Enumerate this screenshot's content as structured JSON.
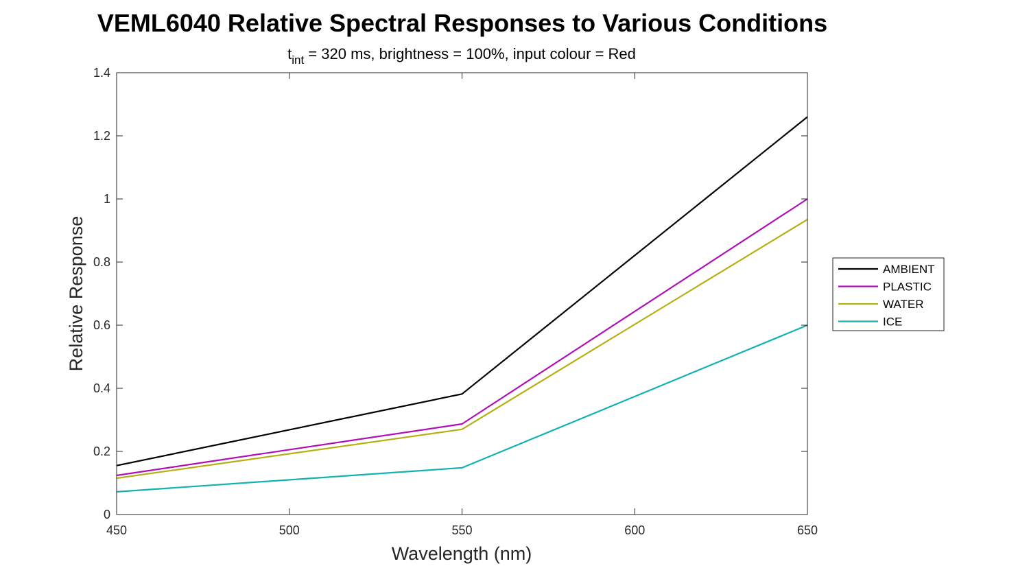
{
  "chart_data": {
    "type": "line",
    "title": "VEML6040 Relative Spectral Responses to Various Conditions",
    "subtitle": {
      "base": "t",
      "subscript": "int",
      "text": " = 320 ms, brightness = 100%, input colour = Red"
    },
    "xlabel": "Wavelength (nm)",
    "ylabel": "Relative Response",
    "xlim": [
      450,
      650
    ],
    "ylim": [
      0,
      1.4
    ],
    "xticks": [
      "450",
      "500",
      "550",
      "600",
      "650"
    ],
    "yticks": [
      "0",
      "0.2",
      "0.4",
      "0.6",
      "0.8",
      "1",
      "1.2",
      "1.4"
    ],
    "x": [
      450,
      550,
      650
    ],
    "grid": false,
    "legend_position": "outside-right",
    "series": [
      {
        "name": "AMBIENT",
        "color": "#000000",
        "values": [
          0.155,
          0.382,
          1.26
        ]
      },
      {
        "name": "PLASTIC",
        "color": "#b00fb8",
        "values": [
          0.124,
          0.287,
          1.0
        ]
      },
      {
        "name": "WATER",
        "color": "#b5b012",
        "values": [
          0.115,
          0.27,
          0.935
        ]
      },
      {
        "name": "ICE",
        "color": "#12b2b2",
        "values": [
          0.072,
          0.148,
          0.6
        ]
      }
    ]
  }
}
